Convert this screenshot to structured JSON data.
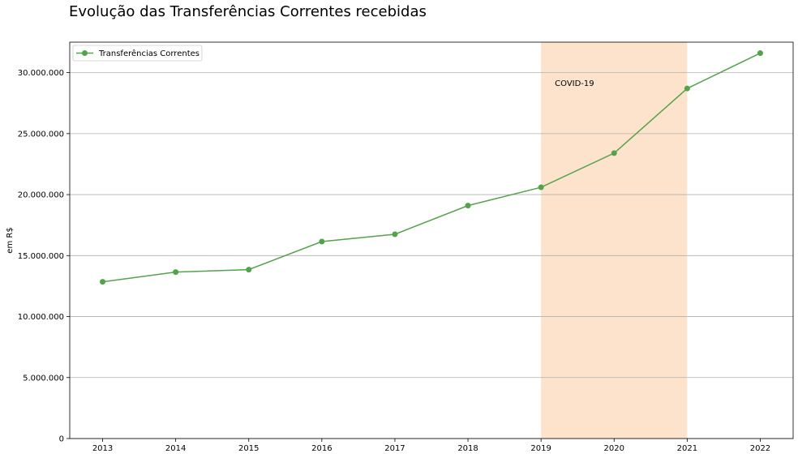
{
  "chart_data": {
    "type": "line",
    "title": "Evolução das Transferências Correntes recebidas",
    "xlabel": "",
    "ylabel": "em R$",
    "x": [
      2013,
      2014,
      2015,
      2016,
      2017,
      2018,
      2019,
      2020,
      2021,
      2022
    ],
    "series": [
      {
        "name": "Transferências Correntes",
        "color": "#54a24b",
        "marker": "circle",
        "values": [
          12850000,
          13650000,
          13850000,
          16150000,
          16750000,
          19100000,
          20600000,
          23400000,
          28700000,
          31600000
        ]
      }
    ],
    "xlim": [
      2012.55,
      2022.45
    ],
    "ylim": [
      0,
      32500000
    ],
    "yticks": [
      0,
      5000000,
      10000000,
      15000000,
      20000000,
      25000000,
      30000000
    ],
    "ytick_labels": [
      "0",
      "5.000.000",
      "10.000.000",
      "15.000.000",
      "20.000.000",
      "25.000.000",
      "30.000.000"
    ],
    "xtick_labels": [
      "2013",
      "2014",
      "2015",
      "2016",
      "2017",
      "2018",
      "2019",
      "2020",
      "2021",
      "2022"
    ],
    "grid": "horizontal",
    "legend": "top-left",
    "shaded_region": {
      "x_start": 2019,
      "x_end": 2021,
      "color": "#fde3cc",
      "label": "COVID-19"
    }
  }
}
